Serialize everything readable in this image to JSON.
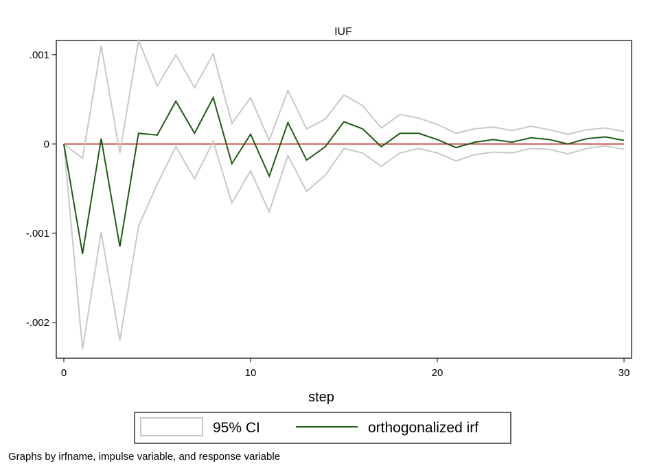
{
  "chart_data": {
    "type": "line",
    "title": "IUF",
    "xlabel": "step",
    "ylabel": "",
    "xlim": [
      0,
      30
    ],
    "ylim": [
      -0.0024,
      0.00116
    ],
    "x_ticks": [
      0,
      10,
      20,
      30
    ],
    "x_tick_labels": [
      "0",
      "10",
      "20",
      "30"
    ],
    "y_ticks": [
      0.001,
      0,
      -0.001,
      -0.002
    ],
    "y_tick_labels": [
      ".001",
      "0",
      "-.001",
      "-.002"
    ],
    "zero_line": 0,
    "x": [
      0,
      1,
      2,
      3,
      4,
      5,
      6,
      7,
      8,
      9,
      10,
      11,
      12,
      13,
      14,
      15,
      16,
      17,
      18,
      19,
      20,
      21,
      22,
      23,
      24,
      25,
      26,
      27,
      28,
      29,
      30
    ],
    "series": [
      {
        "name": "orthogonalized irf",
        "color": "#1e5a12",
        "values": [
          0,
          -0.00123,
          6e-05,
          -0.00115,
          0.00012,
          0.0001,
          0.00048,
          0.00012,
          0.00052,
          -0.00022,
          0.00011,
          -0.00036,
          0.00024,
          -0.00018,
          -3e-05,
          0.00025,
          0.00017,
          -3e-05,
          0.00012,
          0.00012,
          5e-05,
          -4e-05,
          2e-05,
          5e-05,
          2e-05,
          7e-05,
          5e-05,
          0.0,
          6e-05,
          8e-05,
          4e-05
        ]
      },
      {
        "name": "95% CI upper",
        "color": "#c8c8c8",
        "values": [
          0,
          -0.00016,
          0.0011,
          -0.0001,
          0.00116,
          0.00065,
          0.001,
          0.00063,
          0.00101,
          0.00023,
          0.00052,
          4e-05,
          0.0006,
          0.00017,
          0.00028,
          0.00055,
          0.00043,
          0.00018,
          0.00033,
          0.00029,
          0.00022,
          0.00012,
          0.00017,
          0.00019,
          0.00015,
          0.0002,
          0.00016,
          0.00011,
          0.00016,
          0.00018,
          0.00014
        ]
      },
      {
        "name": "95% CI lower",
        "color": "#c8c8c8",
        "values": [
          0,
          -0.0023,
          -0.00099,
          -0.0022,
          -0.00092,
          -0.00045,
          -3e-05,
          -0.00039,
          3e-05,
          -0.00066,
          -0.0003,
          -0.00076,
          -0.00013,
          -0.00053,
          -0.00035,
          -5e-05,
          -0.0001,
          -0.00025,
          -0.0001,
          -5e-05,
          -0.0001,
          -0.00019,
          -0.00012,
          -9e-05,
          -0.0001,
          -5e-05,
          -6e-05,
          -0.00011,
          -5e-05,
          -2e-05,
          -6e-05
        ]
      }
    ],
    "legend": [
      {
        "label": "95% CI",
        "color": "#c8c8c8"
      },
      {
        "label": "orthogonalized irf",
        "color": "#1e5a12"
      }
    ],
    "legend_position": "bottom",
    "note": "Graphs by irfname, impulse variable, and response variable"
  }
}
